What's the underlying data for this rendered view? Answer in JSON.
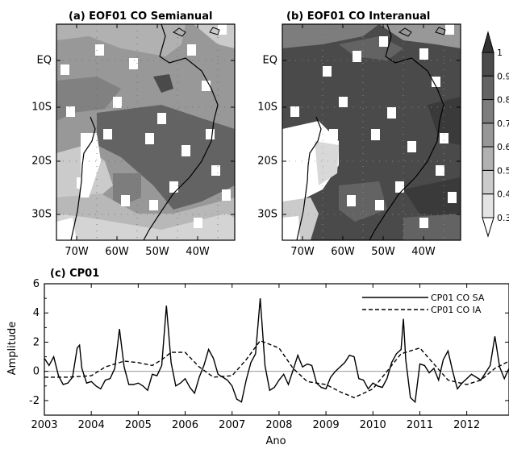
{
  "panel_a": {
    "title": "(a) EOF01 CO Semianual",
    "y_ticks": [
      "EQ",
      "10S",
      "20S",
      "30S"
    ],
    "x_ticks": [
      "70W",
      "60W",
      "50W",
      "40W"
    ]
  },
  "panel_b": {
    "title": "(b) EOF01 CO Interanual",
    "y_ticks": [
      "EQ",
      "10S",
      "20S",
      "30S"
    ],
    "x_ticks": [
      "70W",
      "60W",
      "50W",
      "40W"
    ]
  },
  "colorbar": {
    "labels": [
      "0.3",
      "0.4",
      "0.5",
      "0.6",
      "0.7",
      "0.8",
      "0.9",
      "1"
    ],
    "colors": [
      "#ffffff",
      "#e4e4e4",
      "#cbcbcb",
      "#b1b1b1",
      "#979797",
      "#7d7d7d",
      "#636363",
      "#4a4a4a",
      "#333333"
    ]
  },
  "chart_data": {
    "type": "line",
    "title": "(c) CP01",
    "xlabel": "Ano",
    "ylabel": "Amplitude",
    "xlim": [
      2003,
      2012.9
    ],
    "ylim": [
      -3,
      6
    ],
    "x_ticks": [
      "2003",
      "2004",
      "2005",
      "2006",
      "2007",
      "2008",
      "2009",
      "2010",
      "2011",
      "2012"
    ],
    "y_ticks": [
      "6",
      "4",
      "2",
      "0",
      "-2"
    ],
    "legend_position": "top-right",
    "series": [
      {
        "name": "CP01  CO  SA",
        "style": "solid",
        "x": [
          2003.0,
          2003.1,
          2003.2,
          2003.3,
          2003.4,
          2003.5,
          2003.6,
          2003.7,
          2003.75,
          2003.8,
          2003.9,
          2004.0,
          2004.1,
          2004.2,
          2004.3,
          2004.4,
          2004.5,
          2004.6,
          2004.7,
          2004.8,
          2004.9,
          2005.0,
          2005.1,
          2005.2,
          2005.3,
          2005.4,
          2005.5,
          2005.6,
          2005.7,
          2005.8,
          2005.9,
          2006.0,
          2006.1,
          2006.2,
          2006.3,
          2006.4,
          2006.5,
          2006.6,
          2006.7,
          2006.8,
          2006.9,
          2007.0,
          2007.1,
          2007.2,
          2007.3,
          2007.4,
          2007.5,
          2007.6,
          2007.7,
          2007.8,
          2007.9,
          2008.0,
          2008.1,
          2008.2,
          2008.3,
          2008.4,
          2008.5,
          2008.6,
          2008.7,
          2008.8,
          2008.9,
          2009.0,
          2009.1,
          2009.2,
          2009.3,
          2009.4,
          2009.5,
          2009.6,
          2009.7,
          2009.8,
          2009.9,
          2010.0,
          2010.1,
          2010.2,
          2010.3,
          2010.4,
          2010.5,
          2010.6,
          2010.65,
          2010.7,
          2010.8,
          2010.9,
          2011.0,
          2011.1,
          2011.2,
          2011.3,
          2011.4,
          2011.5,
          2011.6,
          2011.7,
          2011.8,
          2011.9,
          2012.0,
          2012.1,
          2012.2,
          2012.3,
          2012.4,
          2012.5,
          2012.6,
          2012.7,
          2012.8,
          2012.9
        ],
        "y": [
          0.9,
          0.4,
          1.0,
          -0.3,
          -0.9,
          -0.8,
          -0.4,
          1.6,
          1.8,
          0.2,
          -0.8,
          -0.7,
          -1.0,
          -1.2,
          -0.6,
          -0.5,
          0.2,
          2.9,
          0.3,
          -0.9,
          -0.9,
          -0.8,
          -1.0,
          -1.3,
          -0.2,
          -0.3,
          0.4,
          4.5,
          0.6,
          -1.0,
          -0.8,
          -0.5,
          -1.1,
          -1.5,
          -0.4,
          0.4,
          1.5,
          0.9,
          -0.2,
          -0.4,
          -0.6,
          -1.0,
          -1.9,
          -2.1,
          -0.6,
          0.6,
          1.2,
          5.0,
          0.4,
          -1.3,
          -1.1,
          -0.6,
          -0.2,
          -0.9,
          0.1,
          1.1,
          0.3,
          0.5,
          0.4,
          -0.8,
          -1.1,
          -1.2,
          -0.4,
          0.0,
          0.3,
          0.6,
          1.1,
          1.0,
          -0.5,
          -0.6,
          -1.2,
          -0.8,
          -1.0,
          -1.1,
          -0.5,
          0.6,
          1.2,
          1.5,
          3.6,
          0.8,
          -1.8,
          -2.1,
          0.5,
          0.4,
          -0.1,
          0.2,
          -0.6,
          0.8,
          1.4,
          0.0,
          -1.2,
          -0.8,
          -0.5,
          -0.2,
          -0.4,
          -0.6,
          -0.1,
          0.4,
          2.4,
          0.3,
          -0.5,
          0.2
        ]
      },
      {
        "name": "CP01  CO  IA",
        "style": "dashed",
        "x": [
          2003.0,
          2003.5,
          2004.0,
          2004.3,
          2004.7,
          2005.0,
          2005.3,
          2005.5,
          2005.7,
          2006.0,
          2006.3,
          2006.6,
          2007.0,
          2007.3,
          2007.6,
          2008.0,
          2008.3,
          2008.6,
          2009.0,
          2009.3,
          2009.6,
          2010.0,
          2010.3,
          2010.6,
          2011.0,
          2011.3,
          2011.6,
          2012.0,
          2012.3,
          2012.6,
          2012.9
        ],
        "y": [
          -0.4,
          -0.4,
          -0.3,
          0.3,
          0.7,
          0.6,
          0.4,
          0.8,
          1.3,
          1.3,
          0.3,
          -0.4,
          -0.3,
          0.8,
          2.1,
          1.6,
          0.2,
          -0.7,
          -0.9,
          -1.4,
          -1.8,
          -1.2,
          0.0,
          1.2,
          1.6,
          0.5,
          -0.6,
          -0.9,
          -0.6,
          0.2,
          0.7
        ]
      }
    ]
  }
}
